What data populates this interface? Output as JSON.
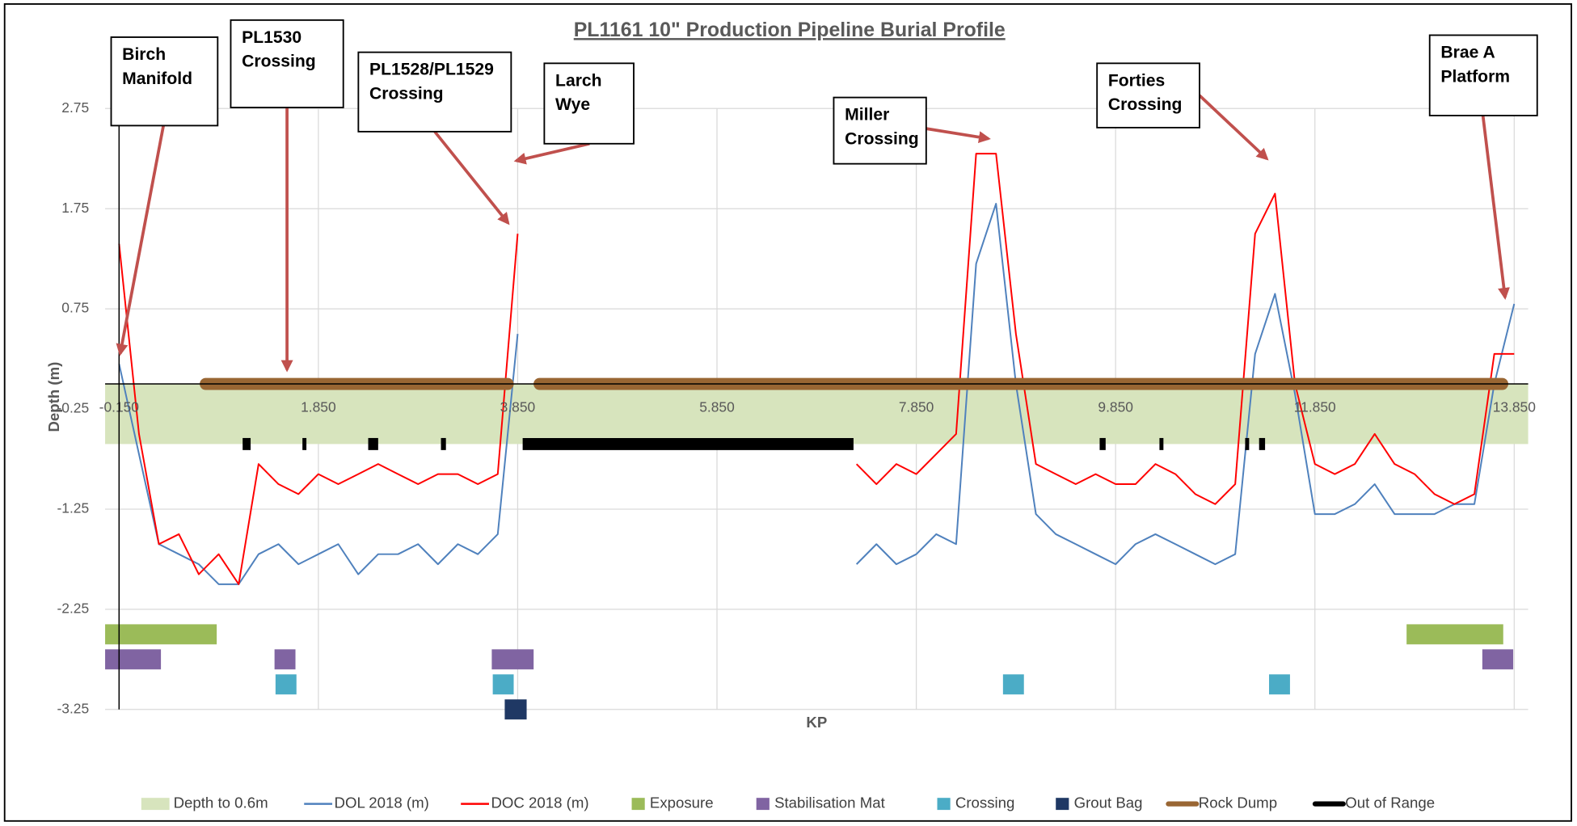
{
  "chart_data": {
    "type": "line",
    "title": "PL1161 10\" Production Pipeline Burial Profile",
    "x_label": "KP",
    "y_label": "Depth (m)",
    "xlim": [
      -0.29,
      13.99
    ],
    "ylim": [
      -3.25,
      2.75
    ],
    "xticks": [
      {
        "value": -0.15,
        "label": "-0.150"
      },
      {
        "value": 1.85,
        "label": "1.850"
      },
      {
        "value": 3.85,
        "label": "3.850"
      },
      {
        "value": 5.85,
        "label": "5.850"
      },
      {
        "value": 7.85,
        "label": "7.850"
      },
      {
        "value": 9.85,
        "label": "9.850"
      },
      {
        "value": 11.85,
        "label": "11.850"
      },
      {
        "value": 13.85,
        "label": "13.850"
      }
    ],
    "yticks": [
      2.75,
      1.75,
      0.75,
      -0.25,
      -1.25,
      -2.25,
      -3.25
    ],
    "x_axis_crosses": 0,
    "grid": true,
    "x": [
      -0.15,
      0.05,
      0.25,
      0.45,
      0.65,
      0.85,
      1.05,
      1.25,
      1.45,
      1.65,
      1.85,
      2.05,
      2.25,
      2.45,
      2.65,
      2.85,
      3.05,
      3.25,
      3.45,
      3.65,
      3.85,
      4.05,
      4.25,
      4.45,
      4.65,
      4.85,
      5.05,
      5.25,
      5.45,
      5.65,
      5.85,
      6.05,
      6.25,
      6.45,
      6.65,
      6.85,
      7.05,
      7.25,
      7.45,
      7.65,
      7.85,
      8.05,
      8.25,
      8.45,
      8.65,
      8.85,
      9.05,
      9.25,
      9.45,
      9.65,
      9.85,
      10.05,
      10.25,
      10.45,
      10.65,
      10.85,
      11.05,
      11.25,
      11.45,
      11.65,
      11.85,
      12.05,
      12.25,
      12.45,
      12.65,
      12.85,
      13.05,
      13.25,
      13.45,
      13.65,
      13.85
    ],
    "series": [
      {
        "name": "Depth to 0.6m",
        "kind": "band",
        "color": "#d7e4bd",
        "range": [
          0,
          -0.6
        ]
      },
      {
        "name": "DOL 2018 (m)",
        "kind": "line",
        "color": "#4f81bd",
        "values": [
          0.2,
          -0.7,
          -1.6,
          -1.7,
          -1.8,
          -2.0,
          -2.0,
          -1.7,
          -1.6,
          -1.8,
          -1.7,
          -1.6,
          -1.9,
          -1.7,
          -1.7,
          -1.6,
          -1.8,
          -1.6,
          -1.7,
          -1.5,
          0.5,
          null,
          null,
          null,
          null,
          null,
          null,
          null,
          null,
          null,
          null,
          null,
          null,
          null,
          null,
          null,
          null,
          -1.8,
          -1.6,
          -1.8,
          -1.7,
          -1.5,
          -1.6,
          1.2,
          1.8,
          0.0,
          -1.3,
          -1.5,
          -1.6,
          -1.7,
          -1.8,
          -1.6,
          -1.5,
          -1.6,
          -1.7,
          -1.8,
          -1.7,
          0.3,
          0.9,
          -0.1,
          -1.3,
          -1.3,
          -1.2,
          -1.0,
          -1.3,
          -1.3,
          -1.3,
          -1.2,
          -1.2,
          0.0,
          0.8
        ]
      },
      {
        "name": "DOC 2018 (m)",
        "kind": "line",
        "color": "#ff0000",
        "values": [
          1.4,
          -0.5,
          -1.6,
          -1.5,
          -1.9,
          -1.7,
          -2.0,
          -0.8,
          -1.0,
          -1.1,
          -0.9,
          -1.0,
          -0.9,
          -0.8,
          -0.9,
          -1.0,
          -0.9,
          -0.9,
          -1.0,
          -0.9,
          1.5,
          null,
          null,
          null,
          null,
          null,
          null,
          null,
          null,
          null,
          null,
          null,
          null,
          null,
          null,
          null,
          null,
          -0.8,
          -1.0,
          -0.8,
          -0.9,
          -0.7,
          -0.5,
          2.3,
          2.3,
          0.5,
          -0.8,
          -0.9,
          -1.0,
          -0.9,
          -1.0,
          -1.0,
          -0.8,
          -0.9,
          -1.1,
          -1.2,
          -1.0,
          1.5,
          1.9,
          0.0,
          -0.8,
          -0.9,
          -0.8,
          -0.5,
          -0.8,
          -0.9,
          -1.1,
          -1.2,
          -1.1,
          0.3,
          0.3
        ]
      },
      {
        "name": "Exposure",
        "kind": "blocks",
        "color": "#9bbb59",
        "y": -2.5,
        "segments": [
          [
            -0.29,
            0.83
          ],
          [
            12.77,
            13.74
          ]
        ]
      },
      {
        "name": "Stabilisation Mat",
        "kind": "blocks",
        "color": "#8064a2",
        "y": -2.75,
        "segments": [
          [
            -0.29,
            0.27
          ],
          [
            1.41,
            1.62
          ],
          [
            3.59,
            4.01
          ],
          [
            13.53,
            13.84
          ]
        ]
      },
      {
        "name": "Crossing",
        "kind": "blocks",
        "color": "#4bacc6",
        "y": -3.0,
        "segments": [
          [
            1.42,
            1.63
          ],
          [
            3.6,
            3.81
          ],
          [
            8.72,
            8.93
          ],
          [
            11.39,
            11.6
          ]
        ]
      },
      {
        "name": "Grout Bag",
        "kind": "blocks",
        "color": "#1f3864",
        "y": -3.25,
        "segments": [
          [
            3.72,
            3.94
          ]
        ]
      },
      {
        "name": "Rock Dump",
        "kind": "bars",
        "color": "#996633",
        "y": 0,
        "segments": [
          [
            0.72,
            3.75
          ],
          [
            4.07,
            13.73
          ]
        ]
      },
      {
        "name": "Out of Range",
        "kind": "bars",
        "color": "#000000",
        "y": -0.6,
        "segments": [
          [
            1.09,
            1.17
          ],
          [
            1.69,
            1.73
          ],
          [
            2.35,
            2.45
          ],
          [
            3.08,
            3.13
          ],
          [
            3.9,
            7.22
          ],
          [
            9.69,
            9.75
          ],
          [
            10.29,
            10.33
          ],
          [
            11.15,
            11.19
          ],
          [
            11.29,
            11.35
          ]
        ]
      }
    ],
    "annotations": [
      {
        "lines": [
          "Birch",
          "Manifold"
        ]
      },
      {
        "lines": [
          "PL1530",
          "Crossing"
        ]
      },
      {
        "lines": [
          "PL1528/PL1529",
          "Crossing"
        ]
      },
      {
        "lines": [
          "Larch",
          "Wye"
        ]
      },
      {
        "lines": [
          "Miller",
          "Crossing"
        ]
      },
      {
        "lines": [
          "Forties",
          "Crossing"
        ]
      },
      {
        "lines": [
          "Brae A",
          "Platform"
        ]
      }
    ]
  }
}
